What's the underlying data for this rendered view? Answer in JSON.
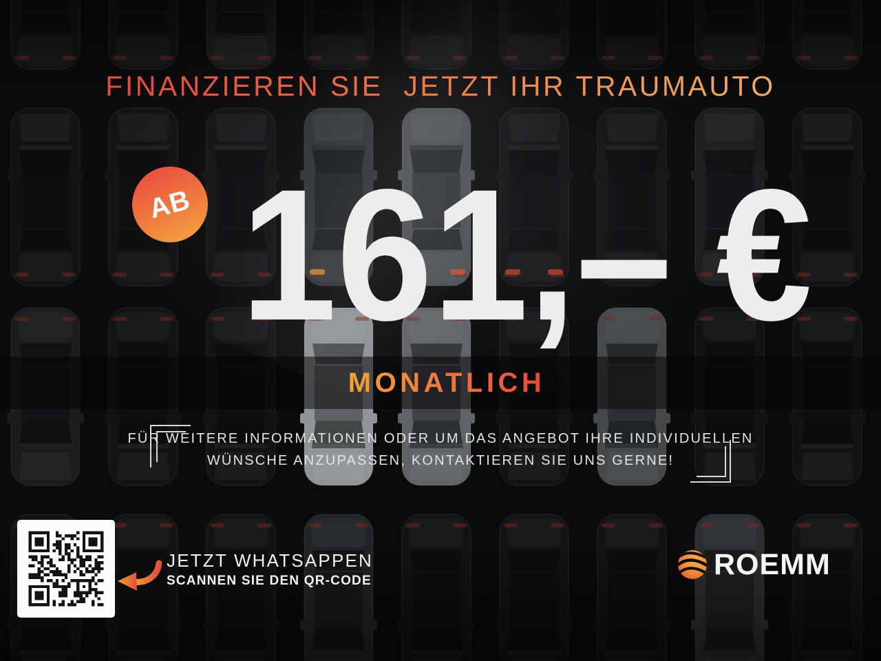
{
  "poster": {
    "headline": "FINANZIEREN SIE  JETZT IHR TRAUMAUTO",
    "badge_label": "AB",
    "price": {
      "amount": "161,–",
      "currency": "€",
      "period": "MONATLICH"
    },
    "info_line1": "FÜR WEITERE INFORMATIONEN ODER UM DAS ANGEBOT IHRE INDIVIDUELLEN",
    "info_line2": "WÜNSCHE ANZUPASSEN, KONTAKTIEREN SIE UNS GERNE!",
    "cta": {
      "title": "JETZT WHATSAPPEN",
      "subtitle": "SCANNEN SIE DEN QR-CODE",
      "qr_icon": "qr-code",
      "arrow_icon": "curved-arrow-left"
    },
    "brand": {
      "name": "ROEMM",
      "logo_icon": "roemm-flame-sphere"
    },
    "colors": {
      "accent_red": "#e2433b",
      "accent_orange": "#ee7a45",
      "accent_gold": "#f3b26b",
      "price_text": "#ededee",
      "band_background": "rgba(3,4,6,0.52)",
      "background": "#0b0b0c",
      "qr_card": "#fbfbfb"
    }
  }
}
